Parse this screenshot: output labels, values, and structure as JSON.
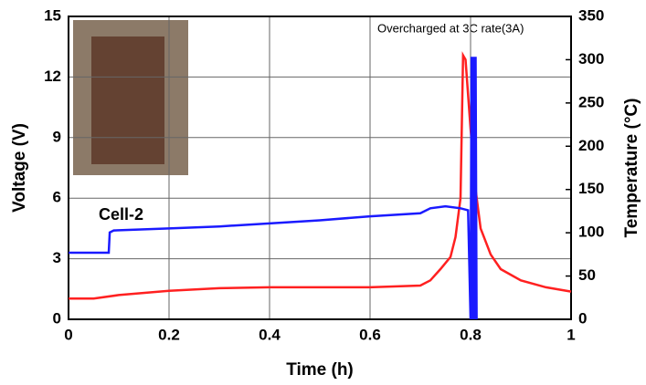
{
  "chart_data": {
    "type": "line",
    "x_label": "Time (h)",
    "y_label": "Voltage (V)",
    "y2_label": "Temperature (°C)",
    "annotations": [
      "Overcharged at 3C rate(3A)",
      "Cell-2"
    ],
    "xlim": [
      0,
      1
    ],
    "xticks": [
      0,
      0.2,
      0.4,
      0.6,
      0.8,
      1
    ],
    "ylim": [
      0,
      15
    ],
    "yticks": [
      0,
      3,
      6,
      9,
      12,
      15
    ],
    "y2lim": [
      0,
      350
    ],
    "y2ticks": [
      0,
      50,
      100,
      150,
      200,
      250,
      300,
      350
    ],
    "grid": true,
    "series": [
      {
        "color": "#ff2020",
        "axis": "y2",
        "x": [
          0,
          0.05,
          0.1,
          0.2,
          0.3,
          0.4,
          0.5,
          0.6,
          0.7,
          0.72,
          0.74,
          0.76,
          0.77,
          0.78,
          0.785,
          0.79,
          0.8,
          0.81,
          0.82,
          0.84,
          0.86,
          0.9,
          0.95,
          1
        ],
        "values": [
          24,
          24,
          28,
          33,
          36,
          37,
          37,
          37,
          39,
          45,
          58,
          72,
          95,
          140,
          305,
          300,
          220,
          150,
          105,
          75,
          58,
          45,
          37,
          32
        ]
      },
      {
        "color": "#1a1aff",
        "axis": "y",
        "x": [
          0,
          0.08,
          0.082,
          0.09,
          0.2,
          0.3,
          0.4,
          0.5,
          0.6,
          0.7,
          0.72,
          0.75,
          0.78,
          0.795,
          0.8,
          0.802,
          0.804,
          0.806,
          0.808,
          0.81,
          0.812
        ],
        "values": [
          3.3,
          3.3,
          4.3,
          4.4,
          4.5,
          4.6,
          4.75,
          4.9,
          5.1,
          5.25,
          5.5,
          5.6,
          5.5,
          5.4,
          0,
          13,
          0,
          13,
          0,
          13,
          0
        ]
      }
    ]
  }
}
